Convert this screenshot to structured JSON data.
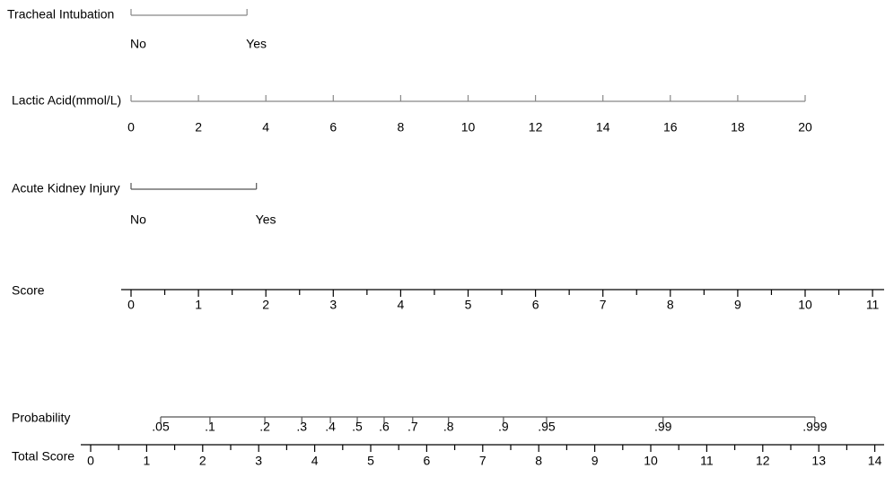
{
  "chart_data": {
    "type": "nomogram",
    "rows": [
      {
        "label": "Tracheal Intubation",
        "scale": "score",
        "ticks": [
          "No",
          "Yes"
        ],
        "points": [
          0,
          1.72
        ]
      },
      {
        "label": "Lactic Acid(mmol/L)",
        "scale": "score",
        "ticks": [
          0,
          2,
          4,
          6,
          8,
          10,
          12,
          14,
          16,
          18,
          20
        ],
        "points": [
          0,
          1,
          2,
          3,
          4,
          5,
          6,
          7,
          8,
          9,
          10
        ]
      },
      {
        "label": "Acute Kidney Injury",
        "scale": "score",
        "ticks": [
          "No",
          "Yes"
        ],
        "points": [
          0,
          1.86
        ]
      },
      {
        "label": "Score",
        "scale": "score",
        "axis": true,
        "ticks": [
          0,
          1,
          2,
          3,
          4,
          5,
          6,
          7,
          8,
          9,
          10,
          11
        ],
        "minor_ticks": [
          0.5,
          1.5,
          2.5,
          3.5,
          4.5,
          5.5,
          6.5,
          7.5,
          8.5,
          9.5,
          10.5
        ]
      },
      {
        "label": "Probability",
        "scale": "total",
        "ticks": [
          {
            "value": 0.05,
            "label": ".05"
          },
          {
            "value": 0.1,
            "label": ".1"
          },
          {
            "value": 0.2,
            "label": ".2"
          },
          {
            "value": 0.3,
            "label": ".3"
          },
          {
            "value": 0.4,
            "label": ".4"
          },
          {
            "value": 0.5,
            "label": ".5"
          },
          {
            "value": 0.6,
            "label": ".6"
          },
          {
            "value": 0.7,
            "label": ".7"
          },
          {
            "value": 0.8,
            "label": ".8"
          },
          {
            "value": 0.9,
            "label": ".9"
          },
          {
            "value": 0.95,
            "label": ".95"
          },
          {
            "value": 0.99,
            "label": ".99"
          },
          {
            "value": 0.999,
            "label": ".999"
          }
        ],
        "points": [
          1.25,
          2.13,
          3.11,
          3.77,
          4.28,
          4.76,
          5.24,
          5.75,
          6.39,
          7.37,
          8.14,
          10.22,
          12.93
        ]
      },
      {
        "label": "Total Score",
        "scale": "total",
        "axis": true,
        "ticks": [
          0,
          1,
          2,
          3,
          4,
          5,
          6,
          7,
          8,
          9,
          10,
          11,
          12,
          13,
          14
        ],
        "minor_ticks": [
          0.5,
          1.5,
          2.5,
          3.5,
          4.5,
          5.5,
          6.5,
          7.5,
          8.5,
          9.5,
          10.5,
          11.5,
          12.5,
          13.5
        ]
      }
    ]
  }
}
